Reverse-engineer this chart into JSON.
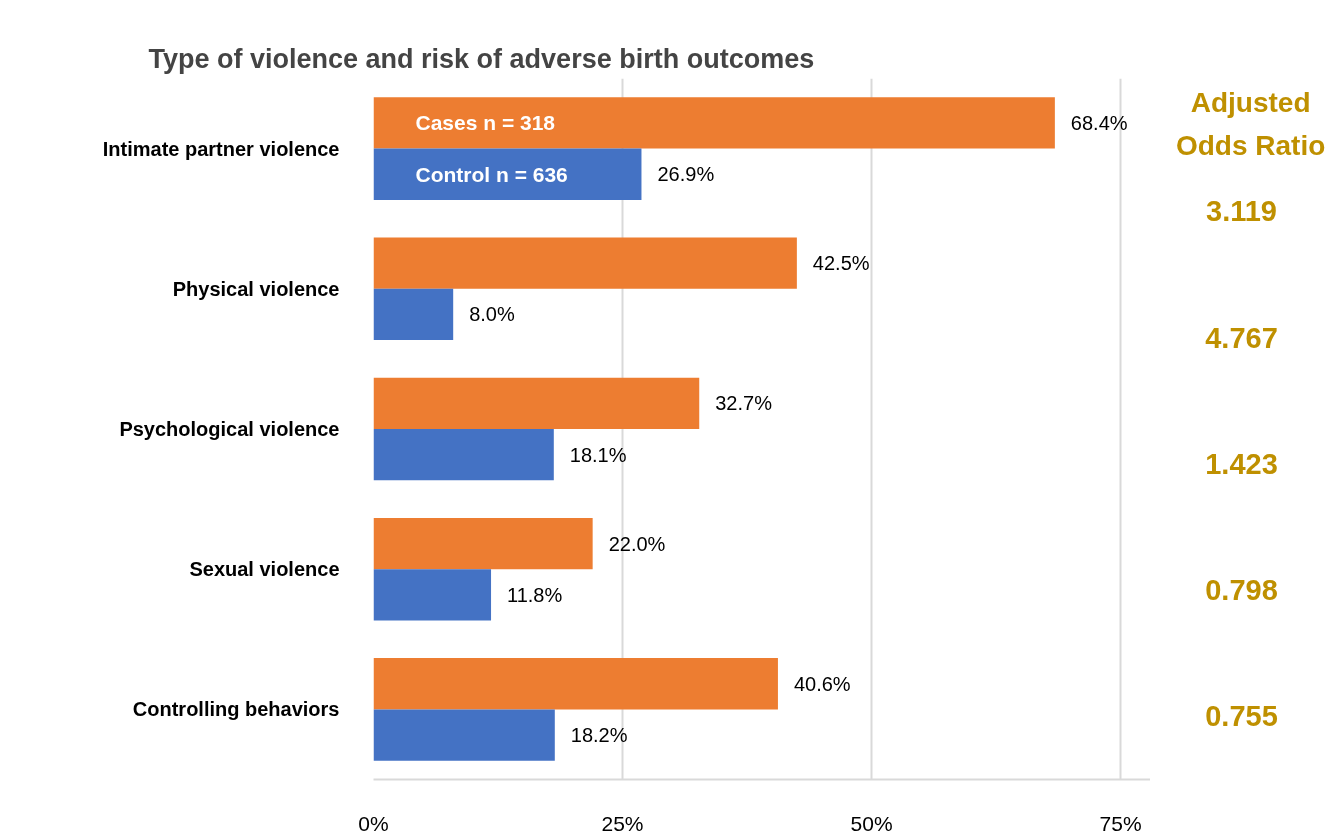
{
  "chart_data": {
    "type": "bar",
    "orientation": "horizontal",
    "title": "Type of violence and risk of adverse birth outcomes",
    "categories": [
      "Intimate partner violence",
      "Physical violence",
      "Psychological violence",
      "Sexual violence",
      "Controlling behaviors"
    ],
    "series": [
      {
        "name": "Cases n = 318",
        "color": "#ed7d31",
        "values": [
          68.4,
          42.5,
          32.7,
          22.0,
          40.6
        ],
        "value_labels": [
          "68.4%",
          "42.5%",
          "32.7%",
          "22.0%",
          "40.6%"
        ]
      },
      {
        "name": "Control n = 636",
        "color": "#4472c4",
        "values": [
          26.9,
          8.0,
          18.1,
          11.8,
          18.2
        ],
        "value_labels": [
          "26.9%",
          "8.0%",
          "18.1%",
          "11.8%",
          "18.2%"
        ]
      }
    ],
    "xlim": [
      0,
      78
    ],
    "xticks": [
      {
        "value": 0,
        "label": "0%"
      },
      {
        "value": 25,
        "label": "25%"
      },
      {
        "value": 50,
        "label": "50%"
      },
      {
        "value": 75,
        "label": "75%"
      }
    ],
    "grid": "x",
    "legend": false,
    "annotations": [
      "Adjusted Odds Ratio",
      "3.119",
      "4.767",
      "1.423",
      "0.798",
      "0.755"
    ]
  }
}
